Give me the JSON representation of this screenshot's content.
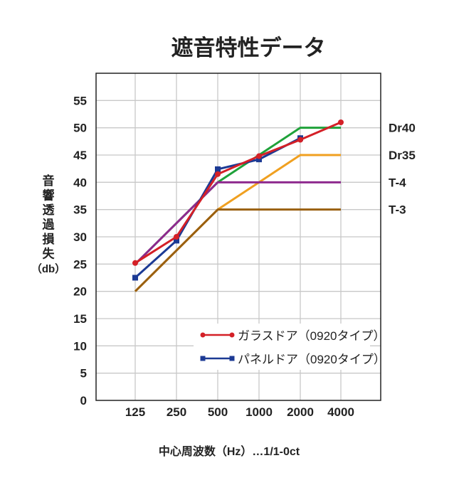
{
  "chart_data": {
    "type": "line",
    "title": "遮音特性データ",
    "xlabel": "中心周波数（Hz）…1/1-0ct",
    "ylabel": [
      "音",
      "響",
      "透",
      "過",
      "損",
      "失",
      "（db）"
    ],
    "categories": [
      "125",
      "250",
      "500",
      "1000",
      "2000",
      "4000"
    ],
    "yticks": [
      "0",
      "5",
      "10",
      "15",
      "20",
      "25",
      "30",
      "35",
      "40",
      "45",
      "50",
      "55"
    ],
    "ylim": [
      0,
      60
    ],
    "grid": true,
    "legend_placement": "bottom-right",
    "reference_lines": [
      {
        "name": "Dr40",
        "color": "#1fa23a",
        "values": [
          25,
          32.5,
          40,
          45,
          50,
          50
        ]
      },
      {
        "name": "Dr35",
        "color": "#f0a020",
        "values": [
          20,
          27.5,
          35,
          40,
          45,
          45
        ]
      },
      {
        "name": "T-4",
        "color": "#8e2a8e",
        "values": [
          25,
          32.5,
          40,
          40,
          40,
          40
        ]
      },
      {
        "name": "T-3",
        "color": "#9a6010",
        "values": [
          20,
          27.5,
          35,
          35,
          35,
          35
        ]
      }
    ],
    "series": [
      {
        "name": "パネルドア（0920タイプ）",
        "color": "#1c3a94",
        "marker": "square",
        "values": [
          22.5,
          29.3,
          42.4,
          44.2,
          48.1,
          null
        ]
      },
      {
        "name": "ガラスドア（0920タイプ）",
        "color": "#d42027",
        "marker": "circle",
        "values": [
          25.2,
          30,
          41.5,
          44.8,
          47.8,
          51
        ]
      }
    ]
  }
}
